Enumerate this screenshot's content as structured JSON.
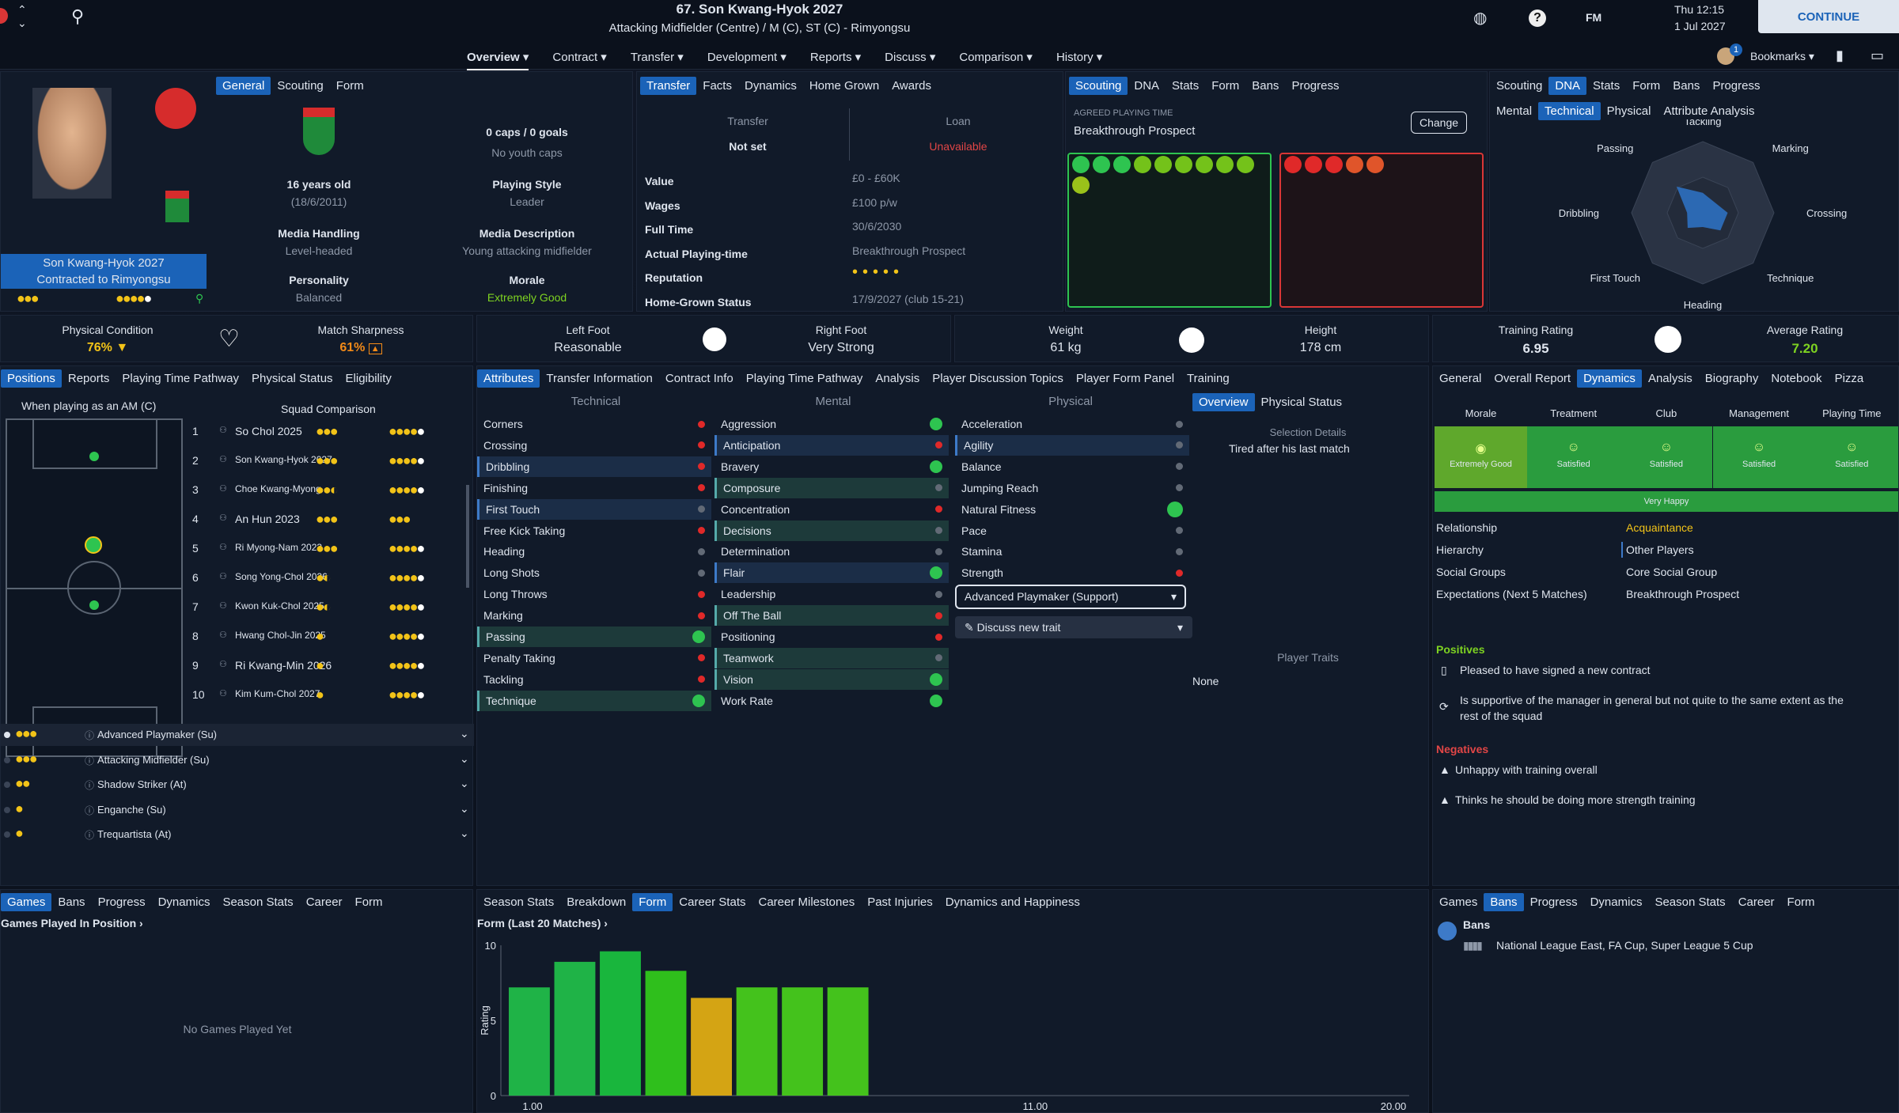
{
  "header": {
    "title": "67. Son Kwang-Hyok 2027",
    "subtitle": "Attacking Midfielder (Centre) / M (C), ST (C) - Rimyongsu",
    "day": "Thu 12:15",
    "date": "1 Jul 2027",
    "fm": "FM",
    "continue": "CONTINUE",
    "bookmarks": "Bookmarks",
    "badge": "1"
  },
  "nav": [
    "Overview",
    "Contract",
    "Transfer",
    "Development",
    "Reports",
    "Discuss",
    "Comparison",
    "History"
  ],
  "general": {
    "tabs": [
      "General",
      "Scouting",
      "Form"
    ],
    "name": "Son Kwang-Hyok 2027",
    "contract": "Contracted to Rimyongsu",
    "caps": "0 caps / 0 goals",
    "youth_caps": "No youth caps",
    "age": "16 years old",
    "dob": "(18/6/2011)",
    "playing_style_label": "Playing Style",
    "playing_style": "Leader",
    "media_handling_label": "Media Handling",
    "media_handling": "Level-headed",
    "media_desc_label": "Media Description",
    "media_desc": "Young attacking midfielder",
    "personality_label": "Personality",
    "personality": "Balanced",
    "morale_label": "Morale",
    "morale": "Extremely Good"
  },
  "transfer": {
    "tabs": [
      "Transfer",
      "Facts",
      "Dynamics",
      "Home Grown",
      "Awards"
    ],
    "transfer_label": "Transfer",
    "transfer_value": "Not set",
    "loan_label": "Loan",
    "loan_value": "Unavailable",
    "rows": [
      {
        "k": "Value",
        "v": "£0 - £60K"
      },
      {
        "k": "Wages",
        "v": "£100 p/w"
      },
      {
        "k": "Full Time",
        "v": "30/6/2030"
      },
      {
        "k": "Actual Playing-time",
        "v": "Breakthrough Prospect"
      },
      {
        "k": "Reputation",
        "v": "•••••"
      },
      {
        "k": "Home-Grown Status",
        "v": "17/9/2027 (club 15-21)"
      }
    ]
  },
  "scouting": {
    "tabs": [
      "Scouting",
      "DNA",
      "Stats",
      "Form",
      "Bans",
      "Progress"
    ],
    "agreed_label": "AGREED PLAYING TIME",
    "agreed": "Breakthrough Prospect",
    "change": "Change"
  },
  "dna": {
    "tabs": [
      "Scouting",
      "DNA",
      "Stats",
      "Form",
      "Bans",
      "Progress"
    ],
    "subtabs": [
      "Mental",
      "Technical",
      "Physical",
      "Attribute Analysis"
    ],
    "labels": [
      "Tackling",
      "Marking",
      "Crossing",
      "Technique",
      "Heading",
      "First Touch",
      "Dribbling",
      "Passing"
    ],
    "values": [
      0.28,
      0.22,
      0.35,
      0.35,
      0.2,
      0.3,
      0.22,
      0.52
    ]
  },
  "strip": {
    "condition_label": "Physical Condition",
    "condition": "76%",
    "sharpness_label": "Match Sharpness",
    "sharpness": "61%",
    "left_label": "Left Foot",
    "left": "Reasonable",
    "right_label": "Right Foot",
    "right": "Very Strong",
    "weight_label": "Weight",
    "weight": "61 kg",
    "height_label": "Height",
    "height": "178 cm",
    "training_label": "Training Rating",
    "training": "6.95",
    "avg_label": "Average Rating",
    "avg": "7.20"
  },
  "positions": {
    "tabs": [
      "Positions",
      "Reports",
      "Playing Time Pathway",
      "Physical Status",
      "Eligibility"
    ],
    "when": "When playing as an AM (C)",
    "squad": "Squad Comparison",
    "squad_list": [
      {
        "n": "1",
        "name": "So Chol 2025"
      },
      {
        "n": "2",
        "name": "Son Kwang-Hyok 2027"
      },
      {
        "n": "3",
        "name": "Choe Kwang-Myong..."
      },
      {
        "n": "4",
        "name": "An Hun 2023"
      },
      {
        "n": "5",
        "name": "Ri Myong-Nam 2023"
      },
      {
        "n": "6",
        "name": "Song Yong-Chol 2026"
      },
      {
        "n": "7",
        "name": "Kwon Kuk-Chol 2025"
      },
      {
        "n": "8",
        "name": "Hwang Chol-Jin 2025"
      },
      {
        "n": "9",
        "name": "Ri Kwang-Min 2026"
      },
      {
        "n": "10",
        "name": "Kim Kum-Chol 2027"
      }
    ],
    "roles": [
      "Advanced Playmaker (Su)",
      "Attacking Midfielder (Su)",
      "Shadow Striker (At)",
      "Enganche (Su)",
      "Trequartista (At)"
    ]
  },
  "attributes": {
    "tabs": [
      "Attributes",
      "Transfer Information",
      "Contract Info",
      "Playing Time Pathway",
      "Analysis",
      "Player Discussion Topics",
      "Player Form Panel",
      "Training"
    ],
    "technical_label": "Technical",
    "mental_label": "Mental",
    "physical_label": "Physical",
    "technical": [
      "Corners",
      "Crossing",
      "Dribbling",
      "Finishing",
      "First Touch",
      "Free Kick Taking",
      "Heading",
      "Long Shots",
      "Long Throws",
      "Marking",
      "Passing",
      "Penalty Taking",
      "Tackling",
      "Technique"
    ],
    "mental": [
      "Aggression",
      "Anticipation",
      "Bravery",
      "Composure",
      "Concentration",
      "Decisions",
      "Determination",
      "Flair",
      "Leadership",
      "Off The Ball",
      "Positioning",
      "Teamwork",
      "Vision",
      "Work Rate"
    ],
    "physical": [
      "Acceleration",
      "Agility",
      "Balance",
      "Jumping Reach",
      "Natural Fitness",
      "Pace",
      "Stamina",
      "Strength"
    ],
    "role": "Advanced Playmaker (Support)",
    "discuss": "Discuss new trait",
    "ov_tabs": [
      "Overview",
      "Physical Status"
    ],
    "selection_label": "Selection Details",
    "selection": "Tired after his last match",
    "traits_label": "Player Traits",
    "traits": "None"
  },
  "dynamics": {
    "tabs": [
      "General",
      "Overall Report",
      "Dynamics",
      "Analysis",
      "Biography",
      "Notebook",
      "Pizza"
    ],
    "cols": [
      "Morale",
      "Treatment",
      "Club",
      "Management",
      "Playing Time"
    ],
    "vals": [
      "Extremely Good",
      "Satisfied",
      "Satisfied",
      "Satisfied",
      "Satisfied"
    ],
    "happy": "Very Happy",
    "rel": [
      {
        "k": "Relationship",
        "v": "Acquaintance"
      },
      {
        "k": "Hierarchy",
        "v": "Other Players"
      },
      {
        "k": "Social Groups",
        "v": "Core Social Group"
      },
      {
        "k": "Expectations (Next 5 Matches)",
        "v": "Breakthrough Prospect"
      }
    ],
    "pos_label": "Positives",
    "positives": [
      "Pleased to have signed a new contract",
      "Is supportive of the manager in general but not quite to the same extent as the",
      "rest of the squad"
    ],
    "neg_label": "Negatives",
    "negatives": [
      "Unhappy with training overall",
      "Thinks he should be doing more strength training"
    ]
  },
  "games": {
    "tabs": [
      "Games",
      "Bans",
      "Progress",
      "Dynamics",
      "Season Stats",
      "Career",
      "Form"
    ],
    "sub": "Games Played In Position",
    "empty": "No Games Played Yet"
  },
  "form": {
    "tabs": [
      "Season Stats",
      "Breakdown",
      "Form",
      "Career Stats",
      "Career Milestones",
      "Past Injuries",
      "Dynamics and Happiness"
    ],
    "title": "Form (Last 20 Matches)"
  },
  "bans": {
    "tabs": [
      "Games",
      "Bans",
      "Progress",
      "Dynamics",
      "Season Stats",
      "Career",
      "Form"
    ],
    "label": "Bans",
    "text": "National League East, FA Cup, Super League 5 Cup"
  },
  "chart_data": {
    "type": "bar",
    "title": "Form (Last 20 Matches)",
    "ylabel": "Rating",
    "ylim": [
      0,
      10
    ],
    "yticks": [
      "0",
      "5",
      "10"
    ],
    "xticks": [
      "1.00",
      "11.00",
      "20.00"
    ],
    "values": [
      7.2,
      8.9,
      9.6,
      8.3,
      6.5,
      7.2,
      7.2,
      7.2
    ],
    "colors": [
      "#1fb347",
      "#1fb347",
      "#19b63d",
      "#2fbf1c",
      "#d4a414",
      "#44c21c",
      "#44c21c",
      "#44c21c"
    ]
  }
}
